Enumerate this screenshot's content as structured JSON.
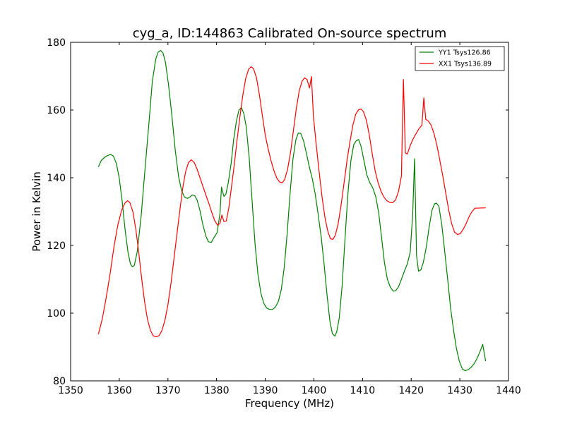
{
  "chart_data": {
    "type": "line",
    "title": "cyg_a, ID:144863 Calibrated On-source spectrum",
    "xlabel": "Frequency (MHz)",
    "ylabel": "Power in Kelvin",
    "xlim": [
      1350,
      1440
    ],
    "ylim": [
      80,
      180
    ],
    "xticks": [
      1350,
      1360,
      1370,
      1380,
      1390,
      1400,
      1410,
      1420,
      1430,
      1440
    ],
    "yticks": [
      80,
      100,
      120,
      140,
      160,
      180
    ],
    "grid": false,
    "legend_position": "top-right",
    "series": [
      {
        "name": "YY1 Tsys126.86",
        "color": "#008000",
        "points": [
          [
            1355.7,
            143.2
          ],
          [
            1356.3,
            145.1
          ],
          [
            1357.2,
            146.3
          ],
          [
            1358.2,
            146.9
          ],
          [
            1358.8,
            146.4
          ],
          [
            1359.4,
            144.2
          ],
          [
            1360.0,
            139.8
          ],
          [
            1360.6,
            133.0
          ],
          [
            1361.2,
            124.5
          ],
          [
            1361.8,
            117.9
          ],
          [
            1362.3,
            114.5
          ],
          [
            1362.7,
            113.7
          ],
          [
            1363.1,
            114.1
          ],
          [
            1363.7,
            118.3
          ],
          [
            1364.5,
            128.8
          ],
          [
            1365.3,
            142.7
          ],
          [
            1366.1,
            156.2
          ],
          [
            1366.8,
            168.5
          ],
          [
            1367.5,
            175.1
          ],
          [
            1368.0,
            177.1
          ],
          [
            1368.5,
            177.6
          ],
          [
            1369.0,
            176.8
          ],
          [
            1369.5,
            174.0
          ],
          [
            1370.1,
            167.7
          ],
          [
            1370.8,
            158.5
          ],
          [
            1371.5,
            148.2
          ],
          [
            1372.2,
            140.3
          ],
          [
            1372.8,
            136.2
          ],
          [
            1373.4,
            134.3
          ],
          [
            1374.0,
            133.9
          ],
          [
            1374.5,
            134.3
          ],
          [
            1375.0,
            134.9
          ],
          [
            1375.5,
            134.7
          ],
          [
            1376.0,
            133.4
          ],
          [
            1376.6,
            130.3
          ],
          [
            1377.2,
            126.0
          ],
          [
            1377.8,
            122.8
          ],
          [
            1378.3,
            121.1
          ],
          [
            1378.9,
            120.9
          ],
          [
            1379.5,
            122.4
          ],
          [
            1380.1,
            123.8
          ],
          [
            1380.7,
            129.5
          ],
          [
            1381.0,
            137.2
          ],
          [
            1381.5,
            134.5
          ],
          [
            1381.9,
            135.1
          ],
          [
            1382.4,
            138.5
          ],
          [
            1383.0,
            144.3
          ],
          [
            1383.5,
            151.2
          ],
          [
            1384.1,
            156.9
          ],
          [
            1384.6,
            160.0
          ],
          [
            1385.1,
            160.7
          ],
          [
            1385.6,
            159.0
          ],
          [
            1386.1,
            155.0
          ],
          [
            1386.7,
            146.0
          ],
          [
            1387.3,
            133.0
          ],
          [
            1387.9,
            120.5
          ],
          [
            1388.5,
            111.5
          ],
          [
            1389.1,
            105.9
          ],
          [
            1389.7,
            102.9
          ],
          [
            1390.3,
            101.5
          ],
          [
            1390.9,
            101.1
          ],
          [
            1391.5,
            101.1
          ],
          [
            1392.1,
            101.8
          ],
          [
            1392.7,
            103.5
          ],
          [
            1393.3,
            107.0
          ],
          [
            1393.9,
            113.4
          ],
          [
            1394.5,
            123.5
          ],
          [
            1395.1,
            135.3
          ],
          [
            1395.7,
            145.5
          ],
          [
            1396.3,
            151.3
          ],
          [
            1396.8,
            153.2
          ],
          [
            1397.3,
            153.1
          ],
          [
            1397.9,
            150.8
          ],
          [
            1398.5,
            147.0
          ],
          [
            1399.1,
            143.0
          ],
          [
            1399.7,
            139.5
          ],
          [
            1400.3,
            135.0
          ],
          [
            1400.9,
            129.0
          ],
          [
            1401.5,
            122.5
          ],
          [
            1402.1,
            114.5
          ],
          [
            1402.7,
            105.5
          ],
          [
            1403.3,
            97.5
          ],
          [
            1403.8,
            94.0
          ],
          [
            1404.3,
            93.2
          ],
          [
            1404.7,
            94.5
          ],
          [
            1405.2,
            98.5
          ],
          [
            1405.8,
            108.0
          ],
          [
            1406.4,
            122.0
          ],
          [
            1407.0,
            135.5
          ],
          [
            1407.6,
            145.0
          ],
          [
            1408.2,
            149.8
          ],
          [
            1408.7,
            150.9
          ],
          [
            1409.2,
            151.3
          ],
          [
            1409.7,
            149.2
          ],
          [
            1410.3,
            145.0
          ],
          [
            1410.9,
            140.8
          ],
          [
            1411.5,
            138.5
          ],
          [
            1412.1,
            137.0
          ],
          [
            1412.7,
            134.5
          ],
          [
            1413.3,
            129.8
          ],
          [
            1413.9,
            122.5
          ],
          [
            1414.5,
            115.0
          ],
          [
            1415.1,
            110.0
          ],
          [
            1415.7,
            107.7
          ],
          [
            1416.3,
            106.5
          ],
          [
            1416.8,
            106.6
          ],
          [
            1417.4,
            107.8
          ],
          [
            1418.0,
            110.0
          ],
          [
            1418.6,
            112.4
          ],
          [
            1419.2,
            114.5
          ],
          [
            1419.8,
            118.0
          ],
          [
            1420.3,
            129.0
          ],
          [
            1420.7,
            145.6
          ],
          [
            1421.1,
            117.0
          ],
          [
            1421.5,
            112.4
          ],
          [
            1422.0,
            112.8
          ],
          [
            1422.5,
            115.0
          ],
          [
            1423.1,
            119.5
          ],
          [
            1423.7,
            125.5
          ],
          [
            1424.3,
            130.5
          ],
          [
            1424.8,
            132.3
          ],
          [
            1425.2,
            132.5
          ],
          [
            1425.7,
            131.5
          ],
          [
            1426.3,
            126.0
          ],
          [
            1426.9,
            118.0
          ],
          [
            1427.5,
            110.0
          ],
          [
            1428.1,
            101.5
          ],
          [
            1428.7,
            95.0
          ],
          [
            1429.3,
            89.5
          ],
          [
            1429.9,
            85.8
          ],
          [
            1430.5,
            83.5
          ],
          [
            1431.1,
            83.0
          ],
          [
            1431.7,
            83.3
          ],
          [
            1432.3,
            84.0
          ],
          [
            1432.9,
            85.0
          ],
          [
            1433.5,
            86.5
          ],
          [
            1434.1,
            88.5
          ],
          [
            1434.7,
            90.8
          ],
          [
            1435.3,
            85.8
          ]
        ]
      },
      {
        "name": "XX1 Tsys136.89",
        "color": "#ff0000",
        "points": [
          [
            1355.7,
            93.8
          ],
          [
            1356.5,
            98.3
          ],
          [
            1357.3,
            104.5
          ],
          [
            1358.1,
            111.5
          ],
          [
            1358.9,
            119.5
          ],
          [
            1359.7,
            126.0
          ],
          [
            1360.5,
            130.5
          ],
          [
            1361.2,
            132.6
          ],
          [
            1361.7,
            133.2
          ],
          [
            1362.2,
            132.6
          ],
          [
            1362.8,
            129.9
          ],
          [
            1363.4,
            124.8
          ],
          [
            1364.0,
            118.0
          ],
          [
            1364.6,
            110.2
          ],
          [
            1365.2,
            103.4
          ],
          [
            1365.8,
            98.2
          ],
          [
            1366.4,
            94.9
          ],
          [
            1367.0,
            93.3
          ],
          [
            1367.6,
            93.0
          ],
          [
            1368.2,
            93.4
          ],
          [
            1368.8,
            95.0
          ],
          [
            1369.4,
            98.0
          ],
          [
            1370.0,
            102.5
          ],
          [
            1370.6,
            108.5
          ],
          [
            1371.2,
            115.5
          ],
          [
            1371.8,
            122.8
          ],
          [
            1372.4,
            129.8
          ],
          [
            1373.0,
            136.5
          ],
          [
            1373.6,
            141.6
          ],
          [
            1374.2,
            144.4
          ],
          [
            1374.8,
            145.3
          ],
          [
            1375.4,
            144.5
          ],
          [
            1376.0,
            142.5
          ],
          [
            1376.6,
            140.0
          ],
          [
            1377.2,
            137.4
          ],
          [
            1377.8,
            134.9
          ],
          [
            1378.4,
            132.5
          ],
          [
            1379.0,
            129.8
          ],
          [
            1379.6,
            127.4
          ],
          [
            1380.2,
            126.0
          ],
          [
            1380.7,
            126.5
          ],
          [
            1381.1,
            129.0
          ],
          [
            1381.5,
            127.1
          ],
          [
            1382.0,
            127.2
          ],
          [
            1382.5,
            131.0
          ],
          [
            1383.0,
            136.5
          ],
          [
            1383.6,
            143.5
          ],
          [
            1384.2,
            151.0
          ],
          [
            1384.8,
            158.0
          ],
          [
            1385.4,
            164.5
          ],
          [
            1386.0,
            169.4
          ],
          [
            1386.6,
            172.1
          ],
          [
            1387.1,
            172.8
          ],
          [
            1387.6,
            172.2
          ],
          [
            1388.2,
            169.5
          ],
          [
            1388.8,
            164.5
          ],
          [
            1389.4,
            158.5
          ],
          [
            1390.0,
            152.6
          ],
          [
            1390.6,
            148.5
          ],
          [
            1391.2,
            145.0
          ],
          [
            1391.8,
            142.0
          ],
          [
            1392.4,
            139.8
          ],
          [
            1393.0,
            138.7
          ],
          [
            1393.5,
            138.5
          ],
          [
            1394.0,
            139.5
          ],
          [
            1394.6,
            142.5
          ],
          [
            1395.2,
            147.5
          ],
          [
            1395.8,
            154.0
          ],
          [
            1396.4,
            160.5
          ],
          [
            1397.0,
            165.8
          ],
          [
            1397.6,
            168.6
          ],
          [
            1398.1,
            169.5
          ],
          [
            1398.6,
            169.0
          ],
          [
            1399.1,
            166.5
          ],
          [
            1399.5,
            169.9
          ],
          [
            1399.9,
            158.0
          ],
          [
            1400.5,
            149.5
          ],
          [
            1401.1,
            141.5
          ],
          [
            1401.7,
            134.0
          ],
          [
            1402.3,
            128.0
          ],
          [
            1402.9,
            124.0
          ],
          [
            1403.4,
            122.0
          ],
          [
            1403.9,
            121.8
          ],
          [
            1404.4,
            123.0
          ],
          [
            1405.0,
            126.5
          ],
          [
            1405.6,
            132.0
          ],
          [
            1406.2,
            138.5
          ],
          [
            1406.8,
            145.0
          ],
          [
            1407.4,
            150.5
          ],
          [
            1408.0,
            155.5
          ],
          [
            1408.6,
            158.8
          ],
          [
            1409.2,
            160.1
          ],
          [
            1409.7,
            160.3
          ],
          [
            1410.2,
            159.5
          ],
          [
            1410.8,
            157.0
          ],
          [
            1411.4,
            152.5
          ],
          [
            1412.0,
            147.0
          ],
          [
            1412.6,
            142.0
          ],
          [
            1413.2,
            138.5
          ],
          [
            1413.8,
            136.0
          ],
          [
            1414.4,
            134.3
          ],
          [
            1415.0,
            133.2
          ],
          [
            1415.6,
            132.7
          ],
          [
            1416.2,
            132.6
          ],
          [
            1416.8,
            133.5
          ],
          [
            1417.4,
            136.0
          ],
          [
            1418.0,
            140.5
          ],
          [
            1418.4,
            169.0
          ],
          [
            1418.8,
            147.3
          ],
          [
            1419.2,
            147.0
          ],
          [
            1419.8,
            149.5
          ],
          [
            1420.4,
            151.5
          ],
          [
            1421.0,
            153.0
          ],
          [
            1421.6,
            154.5
          ],
          [
            1422.2,
            155.5
          ],
          [
            1422.6,
            163.6
          ],
          [
            1423.0,
            157.2
          ],
          [
            1423.5,
            156.8
          ],
          [
            1424.1,
            155.5
          ],
          [
            1424.7,
            153.0
          ],
          [
            1425.3,
            149.5
          ],
          [
            1425.9,
            145.0
          ],
          [
            1426.5,
            140.5
          ],
          [
            1427.1,
            135.5
          ],
          [
            1427.7,
            130.5
          ],
          [
            1428.3,
            126.5
          ],
          [
            1428.9,
            124.0
          ],
          [
            1429.5,
            123.2
          ],
          [
            1430.1,
            123.5
          ],
          [
            1430.7,
            124.8
          ],
          [
            1431.3,
            126.5
          ],
          [
            1431.9,
            128.5
          ],
          [
            1432.5,
            130.0
          ],
          [
            1433.1,
            131.0
          ],
          [
            1435.3,
            131.1
          ]
        ]
      }
    ]
  }
}
